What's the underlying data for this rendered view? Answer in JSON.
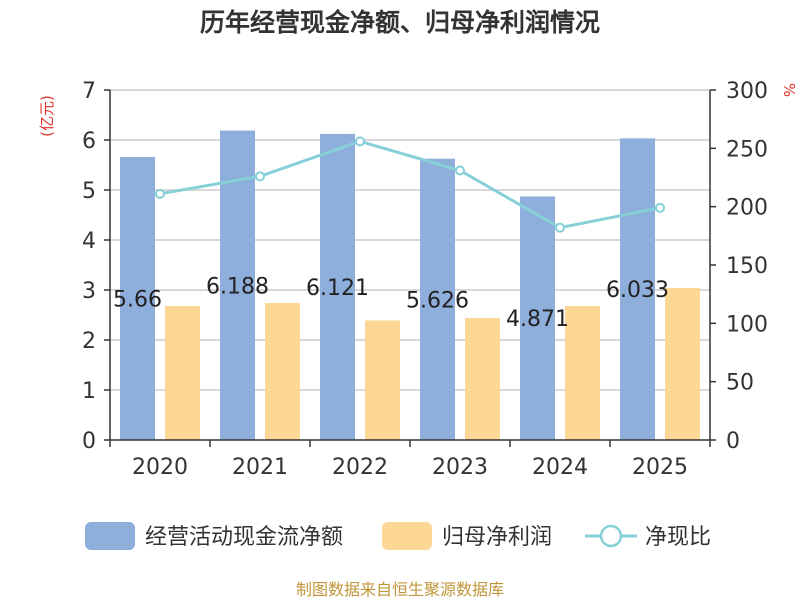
{
  "chart_data": {
    "type": "bar+line",
    "title": "历年经营现金净额、归母净利润情况",
    "categories": [
      "2020",
      "2021",
      "2022",
      "2023",
      "2024",
      "2025"
    ],
    "left_axis": {
      "unit": "(亿元)",
      "ylim": [
        0,
        7
      ],
      "ticks": [
        0,
        1,
        2,
        3,
        4,
        5,
        6,
        7
      ]
    },
    "right_axis": {
      "unit": "%",
      "ylim": [
        0,
        300
      ],
      "ticks": [
        0,
        50,
        100,
        150,
        200,
        250,
        300
      ]
    },
    "series": [
      {
        "name": "经营活动现金流净额",
        "type": "bar",
        "axis": "left",
        "color": "#8eaedb",
        "values": [
          5.66,
          6.188,
          6.121,
          5.626,
          4.871,
          6.033
        ],
        "labels": [
          "5.66",
          "6.188",
          "6.121",
          "5.626",
          "4.871",
          "6.033"
        ]
      },
      {
        "name": "归母净利润",
        "type": "bar",
        "axis": "left",
        "color": "#fdd795",
        "values": [
          2.68,
          2.74,
          2.39,
          2.44,
          2.68,
          3.04
        ]
      },
      {
        "name": "净现比",
        "type": "line",
        "axis": "right",
        "color": "#87d0d8",
        "values": [
          211,
          226,
          256,
          231,
          182,
          199
        ]
      }
    ],
    "grid": true,
    "legend_position": "bottom"
  },
  "source": "制图数据来自恒生聚源数据库"
}
